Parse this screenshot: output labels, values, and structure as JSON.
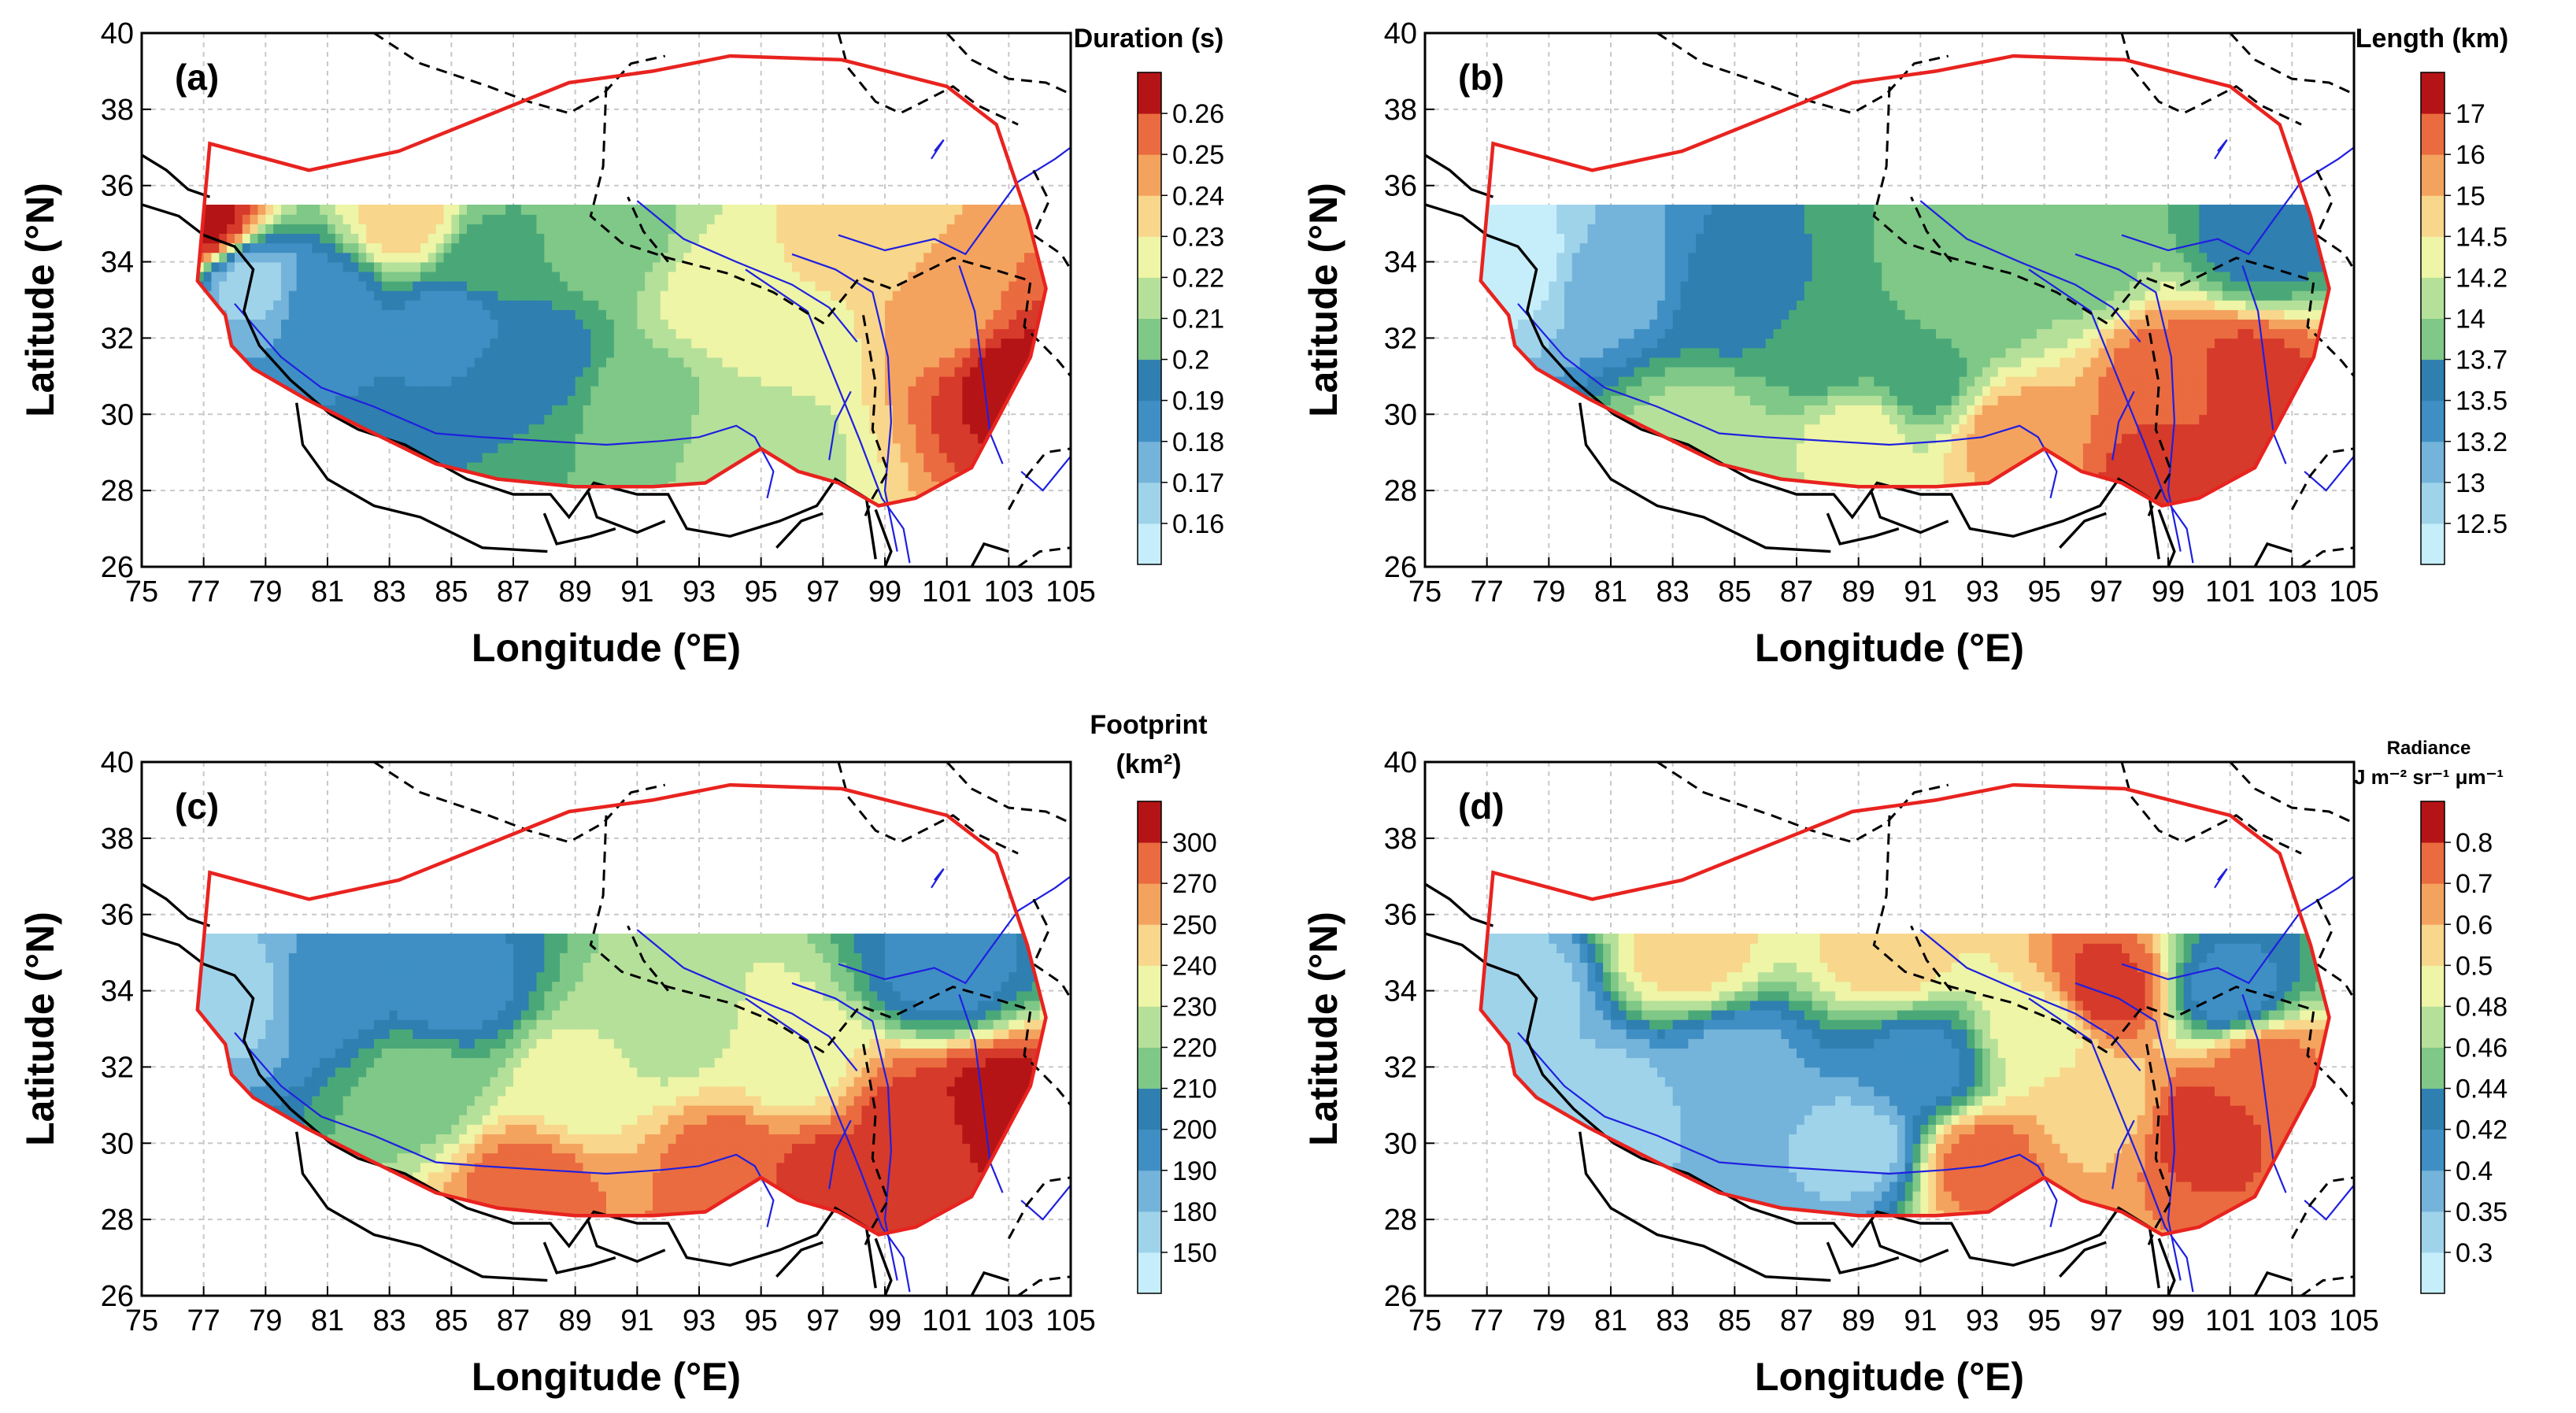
{
  "figure": {
    "colors": {
      "boundary": "#e8231f",
      "rivers": "#1f1fe0",
      "borders": "#000000",
      "ramp": [
        "#c6eefa",
        "#9fd3ea",
        "#74b3da",
        "#3f8fc4",
        "#2f7fb0",
        "#4aa878",
        "#7fc887",
        "#b5e09a",
        "#eef5a6",
        "#f8d68b",
        "#f4a35f",
        "#ea6b3f",
        "#d63a2a",
        "#b51416"
      ]
    }
  },
  "chart_data": [
    {
      "type": "contour-map",
      "panel": "(a)",
      "title": "Duration (s)",
      "title_lines": [
        "Duration (s)"
      ],
      "xlabel": "Longitude (°E)",
      "ylabel": "Latitude (°N)",
      "xlim": [
        75,
        105
      ],
      "ylim": [
        26,
        40
      ],
      "xticks": [
        "75",
        "77",
        "79",
        "81",
        "83",
        "85",
        "87",
        "89",
        "91",
        "93",
        "95",
        "97",
        "99",
        "101",
        "103",
        "105"
      ],
      "yticks": [
        "26",
        "28",
        "30",
        "32",
        "34",
        "36",
        "38",
        "40"
      ],
      "colorbar": [
        "0.16",
        "0.17",
        "0.18",
        "0.19",
        "0.2",
        "0.21",
        "0.22",
        "0.23",
        "0.24",
        "0.25",
        "0.26"
      ],
      "field": [
        {
          "lon": 78.5,
          "lat": 33.5,
          "v": 1
        },
        {
          "lon": 81,
          "lat": 33,
          "v": 3
        },
        {
          "lon": 85,
          "lat": 32.5,
          "v": 3
        },
        {
          "lon": 88,
          "lat": 31.5,
          "v": 4
        },
        {
          "lon": 91,
          "lat": 30.5,
          "v": 6
        },
        {
          "lon": 93.5,
          "lat": 33,
          "v": 8
        },
        {
          "lon": 96,
          "lat": 32,
          "v": 8
        },
        {
          "lon": 98,
          "lat": 34.5,
          "v": 9
        },
        {
          "lon": 101,
          "lat": 32.5,
          "v": 10
        },
        {
          "lon": 103,
          "lat": 31,
          "v": 13
        },
        {
          "lon": 77,
          "lat": 35,
          "v": 13
        },
        {
          "lon": 90,
          "lat": 34.5,
          "v": 6
        },
        {
          "lon": 95,
          "lat": 29.5,
          "v": 7
        },
        {
          "lon": 83.5,
          "lat": 35,
          "v": 9
        },
        {
          "lon": 86,
          "lat": 34,
          "v": 5
        }
      ]
    },
    {
      "type": "contour-map",
      "panel": "(b)",
      "title": "Length (km)",
      "title_lines": [
        "Length (km)"
      ],
      "xlabel": "Longitude (°E)",
      "ylabel": "Latitude (°N)",
      "xlim": [
        75,
        105
      ],
      "ylim": [
        26,
        40
      ],
      "xticks": [
        "75",
        "77",
        "79",
        "81",
        "83",
        "85",
        "87",
        "89",
        "91",
        "93",
        "95",
        "97",
        "99",
        "101",
        "103",
        "105"
      ],
      "yticks": [
        "26",
        "28",
        "30",
        "32",
        "34",
        "36",
        "38",
        "40"
      ],
      "colorbar": [
        "12.5",
        "13",
        "13.2",
        "13.5",
        "13.7",
        "14",
        "14.2",
        "14.5",
        "15",
        "16",
        "17"
      ],
      "field": [
        {
          "lon": 78,
          "lat": 34,
          "v": 0
        },
        {
          "lon": 81,
          "lat": 33.5,
          "v": 2
        },
        {
          "lon": 85,
          "lat": 33,
          "v": 4
        },
        {
          "lon": 88,
          "lat": 31.5,
          "v": 5
        },
        {
          "lon": 91,
          "lat": 31,
          "v": 5
        },
        {
          "lon": 93,
          "lat": 33,
          "v": 6
        },
        {
          "lon": 96,
          "lat": 34,
          "v": 6
        },
        {
          "lon": 94,
          "lat": 29.5,
          "v": 10
        },
        {
          "lon": 99,
          "lat": 31,
          "v": 11
        },
        {
          "lon": 101.5,
          "lat": 31,
          "v": 12
        },
        {
          "lon": 89,
          "lat": 29.5,
          "v": 8
        },
        {
          "lon": 99,
          "lat": 28.5,
          "v": 12
        },
        {
          "lon": 84,
          "lat": 29.5,
          "v": 7
        },
        {
          "lon": 102,
          "lat": 34.5,
          "v": 4
        }
      ]
    },
    {
      "type": "contour-map",
      "panel": "(c)",
      "title": "Footprint (km²)",
      "title_lines": [
        "Footprint",
        "(km²)"
      ],
      "xlabel": "Longitude (°E)",
      "ylabel": "Latitude (°N)",
      "xlim": [
        75,
        105
      ],
      "ylim": [
        26,
        40
      ],
      "xticks": [
        "75",
        "77",
        "79",
        "81",
        "83",
        "85",
        "87",
        "89",
        "91",
        "93",
        "95",
        "97",
        "99",
        "101",
        "103",
        "105"
      ],
      "yticks": [
        "26",
        "28",
        "30",
        "32",
        "34",
        "36",
        "38",
        "40"
      ],
      "colorbar": [
        "150",
        "180",
        "190",
        "200",
        "210",
        "220",
        "230",
        "240",
        "250",
        "270",
        "300"
      ],
      "field": [
        {
          "lon": 78,
          "lat": 34,
          "v": 1
        },
        {
          "lon": 81,
          "lat": 34,
          "v": 3
        },
        {
          "lon": 85,
          "lat": 34,
          "v": 3
        },
        {
          "lon": 84,
          "lat": 31.5,
          "v": 6
        },
        {
          "lon": 89,
          "lat": 31.5,
          "v": 8
        },
        {
          "lon": 92,
          "lat": 33,
          "v": 7
        },
        {
          "lon": 96,
          "lat": 32,
          "v": 8
        },
        {
          "lon": 101,
          "lat": 34.5,
          "v": 3
        },
        {
          "lon": 94,
          "lat": 29.5,
          "v": 11
        },
        {
          "lon": 100,
          "lat": 30.5,
          "v": 12
        },
        {
          "lon": 102.5,
          "lat": 31,
          "v": 13
        },
        {
          "lon": 87.5,
          "lat": 29,
          "v": 11
        },
        {
          "lon": 97,
          "lat": 29,
          "v": 12
        }
      ]
    },
    {
      "type": "contour-map",
      "panel": "(d)",
      "title": "Radiance J m⁻² sr⁻¹ μm⁻¹",
      "title_lines": [
        "Radiance",
        "J m⁻² sr⁻¹ μm⁻¹"
      ],
      "xlabel": "Longitude (°E)",
      "ylabel": "Latitude (°N)",
      "xlim": [
        75,
        105
      ],
      "ylim": [
        26,
        40
      ],
      "xticks": [
        "75",
        "77",
        "79",
        "81",
        "83",
        "85",
        "87",
        "89",
        "91",
        "93",
        "95",
        "97",
        "99",
        "101",
        "103",
        "105"
      ],
      "yticks": [
        "26",
        "28",
        "30",
        "32",
        "34",
        "36",
        "38",
        "40"
      ],
      "colorbar": [
        "0.3",
        "0.35",
        "0.4",
        "0.42",
        "0.44",
        "0.46",
        "0.48",
        "0.5",
        "0.6",
        "0.7",
        "0.8"
      ],
      "field": [
        {
          "lon": 78,
          "lat": 34,
          "v": 1
        },
        {
          "lon": 81,
          "lat": 31,
          "v": 1
        },
        {
          "lon": 85,
          "lat": 32,
          "v": 2
        },
        {
          "lon": 89,
          "lat": 30,
          "v": 1
        },
        {
          "lon": 91,
          "lat": 32,
          "v": 3
        },
        {
          "lon": 93,
          "lat": 29.5,
          "v": 11
        },
        {
          "lon": 95,
          "lat": 33,
          "v": 8
        },
        {
          "lon": 97,
          "lat": 31,
          "v": 9
        },
        {
          "lon": 100,
          "lat": 30.5,
          "v": 12
        },
        {
          "lon": 102,
          "lat": 32,
          "v": 11
        },
        {
          "lon": 101,
          "lat": 34,
          "v": 3
        },
        {
          "lon": 83.5,
          "lat": 35,
          "v": 9
        },
        {
          "lon": 90,
          "lat": 35,
          "v": 9
        },
        {
          "lon": 97,
          "lat": 34,
          "v": 12
        }
      ]
    }
  ],
  "boundary_poly": [
    [
      76.8,
      33.5
    ],
    [
      77.2,
      37.1
    ],
    [
      80.4,
      36.4
    ],
    [
      83.3,
      36.9
    ],
    [
      88.8,
      38.7
    ],
    [
      91.5,
      39.0
    ],
    [
      94.0,
      39.4
    ],
    [
      97.6,
      39.3
    ],
    [
      101.0,
      38.6
    ],
    [
      102.6,
      37.6
    ],
    [
      103.6,
      35.2
    ],
    [
      104.2,
      33.3
    ],
    [
      103.7,
      31.5
    ],
    [
      101.8,
      28.6
    ],
    [
      100.0,
      27.8
    ],
    [
      98.8,
      27.6
    ],
    [
      97.5,
      28.2
    ],
    [
      96.2,
      28.5
    ],
    [
      95.0,
      29.1
    ],
    [
      94.0,
      28.6
    ],
    [
      93.2,
      28.2
    ],
    [
      91.5,
      28.1
    ],
    [
      89.0,
      28.1
    ],
    [
      86.5,
      28.3
    ],
    [
      84.5,
      28.7
    ],
    [
      82.0,
      29.7
    ],
    [
      80.3,
      30.4
    ],
    [
      78.6,
      31.2
    ],
    [
      77.9,
      31.8
    ],
    [
      77.7,
      32.6
    ]
  ],
  "field_polygon_top_lat": 35.5
}
